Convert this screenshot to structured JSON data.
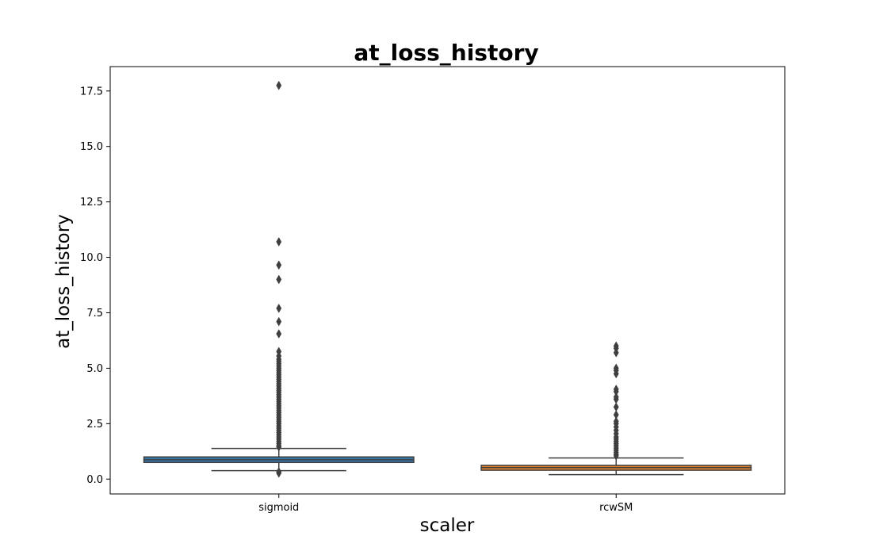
{
  "chart_data": {
    "type": "box",
    "title": "at_loss_history",
    "xlabel": "scaler",
    "ylabel": "at_loss_history",
    "ylim": [
      -0.67,
      18.6
    ],
    "yticks": [
      0.0,
      2.5,
      5.0,
      7.5,
      10.0,
      12.5,
      15.0,
      17.5
    ],
    "ytick_labels": [
      "0.0",
      "2.5",
      "5.0",
      "7.5",
      "10.0",
      "12.5",
      "15.0",
      "17.5"
    ],
    "grid": false,
    "categories": [
      "sigmoid",
      "rcwSM"
    ],
    "series": [
      {
        "category": "sigmoid",
        "color": "#3574a8",
        "whisker_low": 0.38,
        "q1": 0.75,
        "median": 0.87,
        "q3": 1.0,
        "whisker_high": 1.38,
        "outliers": [
          17.75,
          10.7,
          9.65,
          9.0,
          7.7,
          7.1,
          6.55,
          5.75,
          5.55,
          5.4,
          5.3,
          5.2,
          5.1,
          5.0,
          4.9,
          4.8,
          4.7,
          4.6,
          4.5,
          4.4,
          4.3,
          4.2,
          4.1,
          4.0,
          3.9,
          3.8,
          3.7,
          3.6,
          3.5,
          3.4,
          3.3,
          3.2,
          3.1,
          3.0,
          2.9,
          2.8,
          2.7,
          2.6,
          2.5,
          2.4,
          2.3,
          2.2,
          2.1,
          2.0,
          1.9,
          1.8,
          1.7,
          1.6,
          1.5,
          1.45,
          0.33,
          0.27
        ]
      },
      {
        "category": "rcwSM",
        "color": "#e1812c",
        "whisker_low": 0.2,
        "q1": 0.4,
        "median": 0.52,
        "q3": 0.62,
        "whisker_high": 0.95,
        "outliers": [
          6.0,
          5.9,
          5.7,
          5.0,
          4.9,
          4.75,
          4.05,
          3.95,
          3.7,
          3.6,
          3.25,
          2.9,
          2.6,
          2.5,
          2.35,
          2.2,
          2.05,
          1.9,
          1.8,
          1.7,
          1.6,
          1.5,
          1.4,
          1.3,
          1.2,
          1.1,
          1.05
        ]
      }
    ]
  }
}
